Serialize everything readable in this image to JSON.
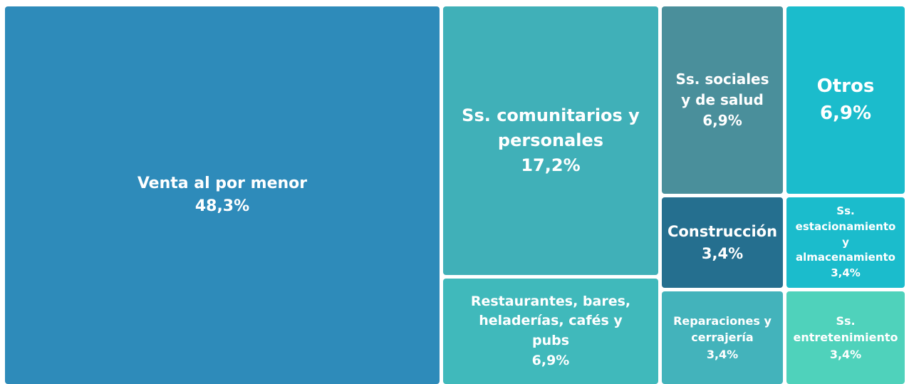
{
  "chart_data": {
    "type": "treemap",
    "categories": [
      "Venta al por menor",
      "Ss. comunitarios y personales",
      "Restaurantes, bares, heladerías, cafés y pubs",
      "Ss. sociales y de salud",
      "Otros",
      "Construcción",
      "Ss. estacionamiento y almacenamiento",
      "Reparaciones y cerrajería",
      "Ss. entretenimiento"
    ],
    "values": [
      48.3,
      17.2,
      6.9,
      6.9,
      6.9,
      3.4,
      3.4,
      3.4,
      3.4
    ],
    "value_labels": [
      "48,3%",
      "17,2%",
      "6,9%",
      "6,9%",
      "6,9%",
      "3,4%",
      "3,4%",
      "3,4%",
      "3,4%"
    ],
    "colors": [
      "#2e8bba",
      "#40b0b8",
      "#40b9bb",
      "#4a8f9b",
      "#1bbccc",
      "#256f8f",
      "#1bbccc",
      "#43b3bb",
      "#4fd2bb"
    ]
  }
}
